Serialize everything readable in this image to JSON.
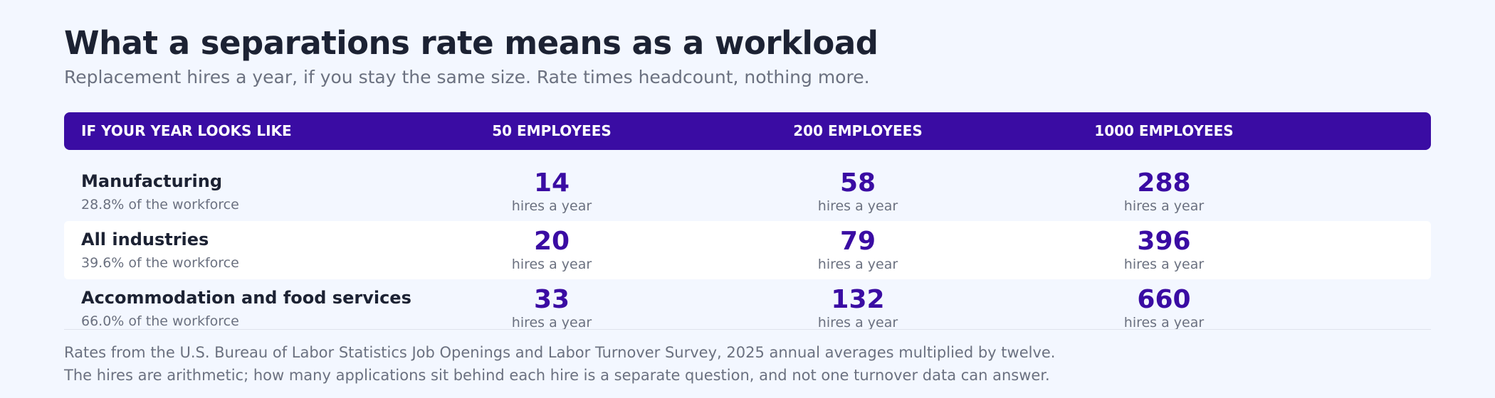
{
  "title": "What a separations rate means as a workload",
  "subtitle": "Replacement hires a year, if you stay the same size. Rate times headcount, nothing more.",
  "header": {
    "col0": "If your year looks like",
    "col1": "50 employees",
    "col2": "200 employees",
    "col3": "1000 employees"
  },
  "rows": [
    {
      "industry": "Manufacturing",
      "share": "28.8% of the workforce",
      "v50": "14",
      "v200": "58",
      "v1000": "288",
      "unit": "hires a year"
    },
    {
      "industry": "All industries",
      "share": "39.6% of the workforce",
      "v50": "20",
      "v200": "79",
      "v1000": "396",
      "unit": "hires a year"
    },
    {
      "industry": "Accommodation and food services",
      "share": "66.0% of the workforce",
      "v50": "33",
      "v200": "132",
      "v1000": "660",
      "unit": "hires a year"
    }
  ],
  "notes": [
    "Rates from the U.S. Bureau of Labor Statistics Job Openings and Labor Turnover Survey, 2025 annual averages multiplied by twelve.",
    "The hires are arithmetic; how many applications sit behind each hire is a separate question, and not one turnover data can answer."
  ],
  "colors": {
    "accent": "#3a0ca3",
    "background": "#f3f7ff",
    "text": "#1c2233",
    "muted": "#6b7180"
  }
}
